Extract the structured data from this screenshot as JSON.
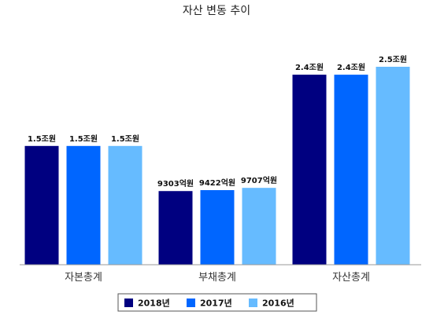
{
  "chart_data": {
    "type": "bar",
    "title": "자산 변동 추이",
    "categories": [
      "자본총계",
      "부채총계",
      "자산총계"
    ],
    "series": [
      {
        "name": "2018년",
        "color": "#000080",
        "values": [
          15000,
          9303,
          24000
        ],
        "labels": [
          "1.5조원",
          "9303억원",
          "2.4조원"
        ]
      },
      {
        "name": "2017년",
        "color": "#0066ff",
        "values": [
          15000,
          9422,
          24000
        ],
        "labels": [
          "1.5조원",
          "9422억원",
          "2.4조원"
        ]
      },
      {
        "name": "2016년",
        "color": "#66bbff",
        "values": [
          15000,
          9707,
          25000
        ],
        "labels": [
          "1.5조원",
          "9707억원",
          "2.5조원"
        ]
      }
    ],
    "unit": "억원",
    "ylim": [
      0,
      25000
    ],
    "grid": false,
    "legend_position": "bottom"
  }
}
